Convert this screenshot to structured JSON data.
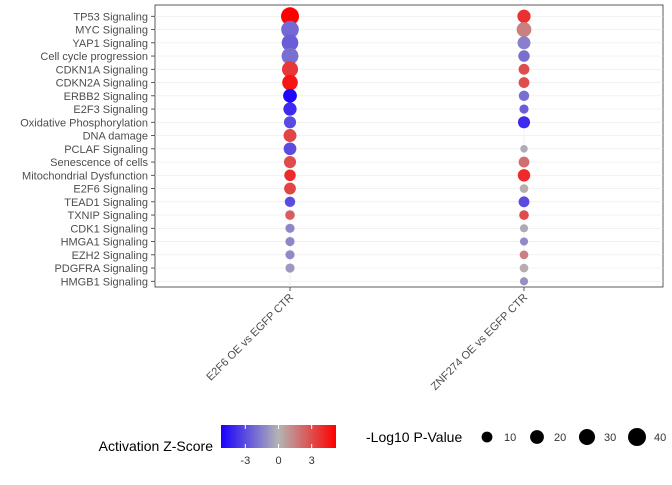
{
  "chart_data": {
    "type": "scatter",
    "pathways": [
      "TP53 Signaling",
      "MYC Signaling",
      "YAP1 Signaling",
      "Cell cycle progression",
      "CDKN1A Signaling",
      "CDKN2A Signaling",
      "ERBB2 Signaling",
      "E2F3 Signaling",
      "Oxidative Phosphorylation",
      "DNA damage",
      "PCLAF Signaling",
      "Senescence of cells",
      "Mitochondrial Dysfunction",
      "E2F6 Signaling",
      "TEAD1 Signaling",
      "TXNIP Signaling",
      "CDK1 Signaling",
      "HMGA1 Signaling",
      "EZH2 Signaling",
      "PDGFRA Signaling",
      "HMGB1 Signaling"
    ],
    "comparisons": [
      "E2F6 OE vs EGFP CTR",
      "ZNF274 OE vs EGFP CTR"
    ],
    "series": [
      {
        "comparison": "E2F6 OE vs EGFP CTR",
        "zscore": [
          5.2,
          -2.2,
          -2.5,
          -2.0,
          3.6,
          4.6,
          -5.0,
          -4.0,
          -3.0,
          3.2,
          -3.0,
          3.0,
          4.0,
          3.2,
          -3.0,
          2.5,
          -1.3,
          -1.3,
          -1.2,
          -0.8,
          null
        ],
        "neglog10p": [
          40,
          38,
          33,
          34,
          30,
          28,
          20,
          18,
          14,
          17,
          16,
          14,
          12,
          13,
          9,
          7,
          6,
          6,
          6,
          6,
          null
        ]
      },
      {
        "comparison": "ZNF274 OE vs EGFP CTR",
        "zscore": [
          3.8,
          1.5,
          -1.5,
          -2.0,
          3.0,
          3.0,
          -2.0,
          -2.5,
          -4.0,
          null,
          -0.2,
          2.0,
          4.0,
          0.2,
          -3.0,
          3.0,
          -0.3,
          -1.2,
          1.5,
          0.2,
          -1.0
        ],
        "neglog10p": [
          18,
          24,
          17,
          12,
          10,
          10,
          9,
          6,
          14,
          null,
          3,
          10,
          15,
          5,
          10,
          7,
          4,
          4,
          5,
          5,
          4
        ]
      }
    ],
    "colorbar": {
      "title": "Activation Z-Score",
      "min": -5.2,
      "max": 5.2,
      "ticks": [
        -3,
        0,
        3
      ],
      "low": "#1a00ff",
      "mid": "#b4b4b4",
      "high": "#ff0000"
    },
    "sizelegend": {
      "title": "-Log10 P-Value",
      "values": [
        10,
        20,
        30,
        40
      ]
    },
    "grid": true
  }
}
